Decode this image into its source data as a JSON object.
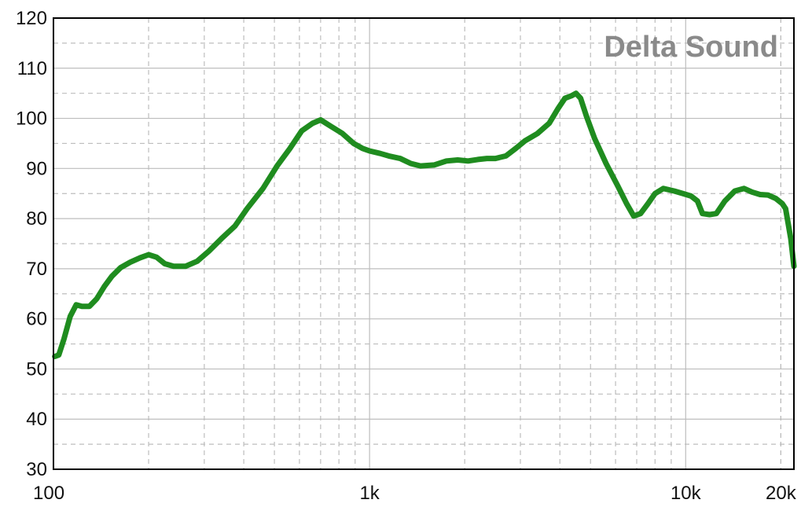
{
  "chart_data": {
    "type": "line",
    "title": "",
    "watermark": "Delta Sound",
    "xlabel": "",
    "ylabel": "",
    "x_scale": "log",
    "xlim": [
      100,
      22000
    ],
    "ylim": [
      30,
      120
    ],
    "grid": true,
    "x_tick_labels": [
      {
        "value": 100,
        "label": "100"
      },
      {
        "value": 1000,
        "label": "1k"
      },
      {
        "value": 10000,
        "label": "10k"
      },
      {
        "value": 20000,
        "label": "20k"
      }
    ],
    "y_tick_labels": [
      {
        "value": 30,
        "label": "30"
      },
      {
        "value": 40,
        "label": "40"
      },
      {
        "value": 50,
        "label": "50"
      },
      {
        "value": 60,
        "label": "60"
      },
      {
        "value": 70,
        "label": "70"
      },
      {
        "value": 80,
        "label": "80"
      },
      {
        "value": 90,
        "label": "90"
      },
      {
        "value": 100,
        "label": "100"
      },
      {
        "value": 110,
        "label": "110"
      },
      {
        "value": 120,
        "label": "120"
      }
    ],
    "series": [
      {
        "color": "#1f8c1f",
        "points": [
          [
            101,
            52.5
          ],
          [
            104,
            52.8
          ],
          [
            108,
            56
          ],
          [
            113,
            60.5
          ],
          [
            118,
            62.8
          ],
          [
            123,
            62.5
          ],
          [
            130,
            62.5
          ],
          [
            137,
            64
          ],
          [
            145,
            66.5
          ],
          [
            153,
            68.5
          ],
          [
            163,
            70.2
          ],
          [
            175,
            71.3
          ],
          [
            188,
            72.2
          ],
          [
            200,
            72.8
          ],
          [
            212,
            72.3
          ],
          [
            225,
            71
          ],
          [
            240,
            70.5
          ],
          [
            262,
            70.5
          ],
          [
            285,
            71.5
          ],
          [
            310,
            73.5
          ],
          [
            340,
            76
          ],
          [
            375,
            78.5
          ],
          [
            410,
            82
          ],
          [
            460,
            86
          ],
          [
            510,
            90.5
          ],
          [
            560,
            94
          ],
          [
            610,
            97.5
          ],
          [
            660,
            99
          ],
          [
            700,
            99.7
          ],
          [
            750,
            98.5
          ],
          [
            820,
            97
          ],
          [
            890,
            95
          ],
          [
            950,
            94
          ],
          [
            1000,
            93.5
          ],
          [
            1080,
            93
          ],
          [
            1150,
            92.5
          ],
          [
            1250,
            92
          ],
          [
            1350,
            91
          ],
          [
            1450,
            90.5
          ],
          [
            1600,
            90.7
          ],
          [
            1750,
            91.5
          ],
          [
            1900,
            91.7
          ],
          [
            2050,
            91.5
          ],
          [
            2200,
            91.8
          ],
          [
            2350,
            92
          ],
          [
            2500,
            92
          ],
          [
            2700,
            92.5
          ],
          [
            2900,
            94
          ],
          [
            3100,
            95.5
          ],
          [
            3400,
            97
          ],
          [
            3700,
            99
          ],
          [
            3950,
            102
          ],
          [
            4150,
            104
          ],
          [
            4350,
            104.5
          ],
          [
            4500,
            105
          ],
          [
            4650,
            104
          ],
          [
            4850,
            100.5
          ],
          [
            5150,
            96
          ],
          [
            5600,
            91
          ],
          [
            6100,
            86.5
          ],
          [
            6500,
            83
          ],
          [
            6850,
            80.5
          ],
          [
            7200,
            81
          ],
          [
            7600,
            83
          ],
          [
            8000,
            85
          ],
          [
            8500,
            86
          ],
          [
            9200,
            85.5
          ],
          [
            9800,
            85
          ],
          [
            10400,
            84.5
          ],
          [
            10900,
            83.5
          ],
          [
            11300,
            81
          ],
          [
            11900,
            80.8
          ],
          [
            12500,
            81
          ],
          [
            13300,
            83.5
          ],
          [
            14300,
            85.5
          ],
          [
            15300,
            86
          ],
          [
            16200,
            85.3
          ],
          [
            17200,
            84.8
          ],
          [
            18200,
            84.7
          ],
          [
            19300,
            84
          ],
          [
            20200,
            83
          ],
          [
            20700,
            82
          ],
          [
            21100,
            79
          ],
          [
            21500,
            76
          ],
          [
            22000,
            70.5
          ]
        ]
      }
    ]
  }
}
